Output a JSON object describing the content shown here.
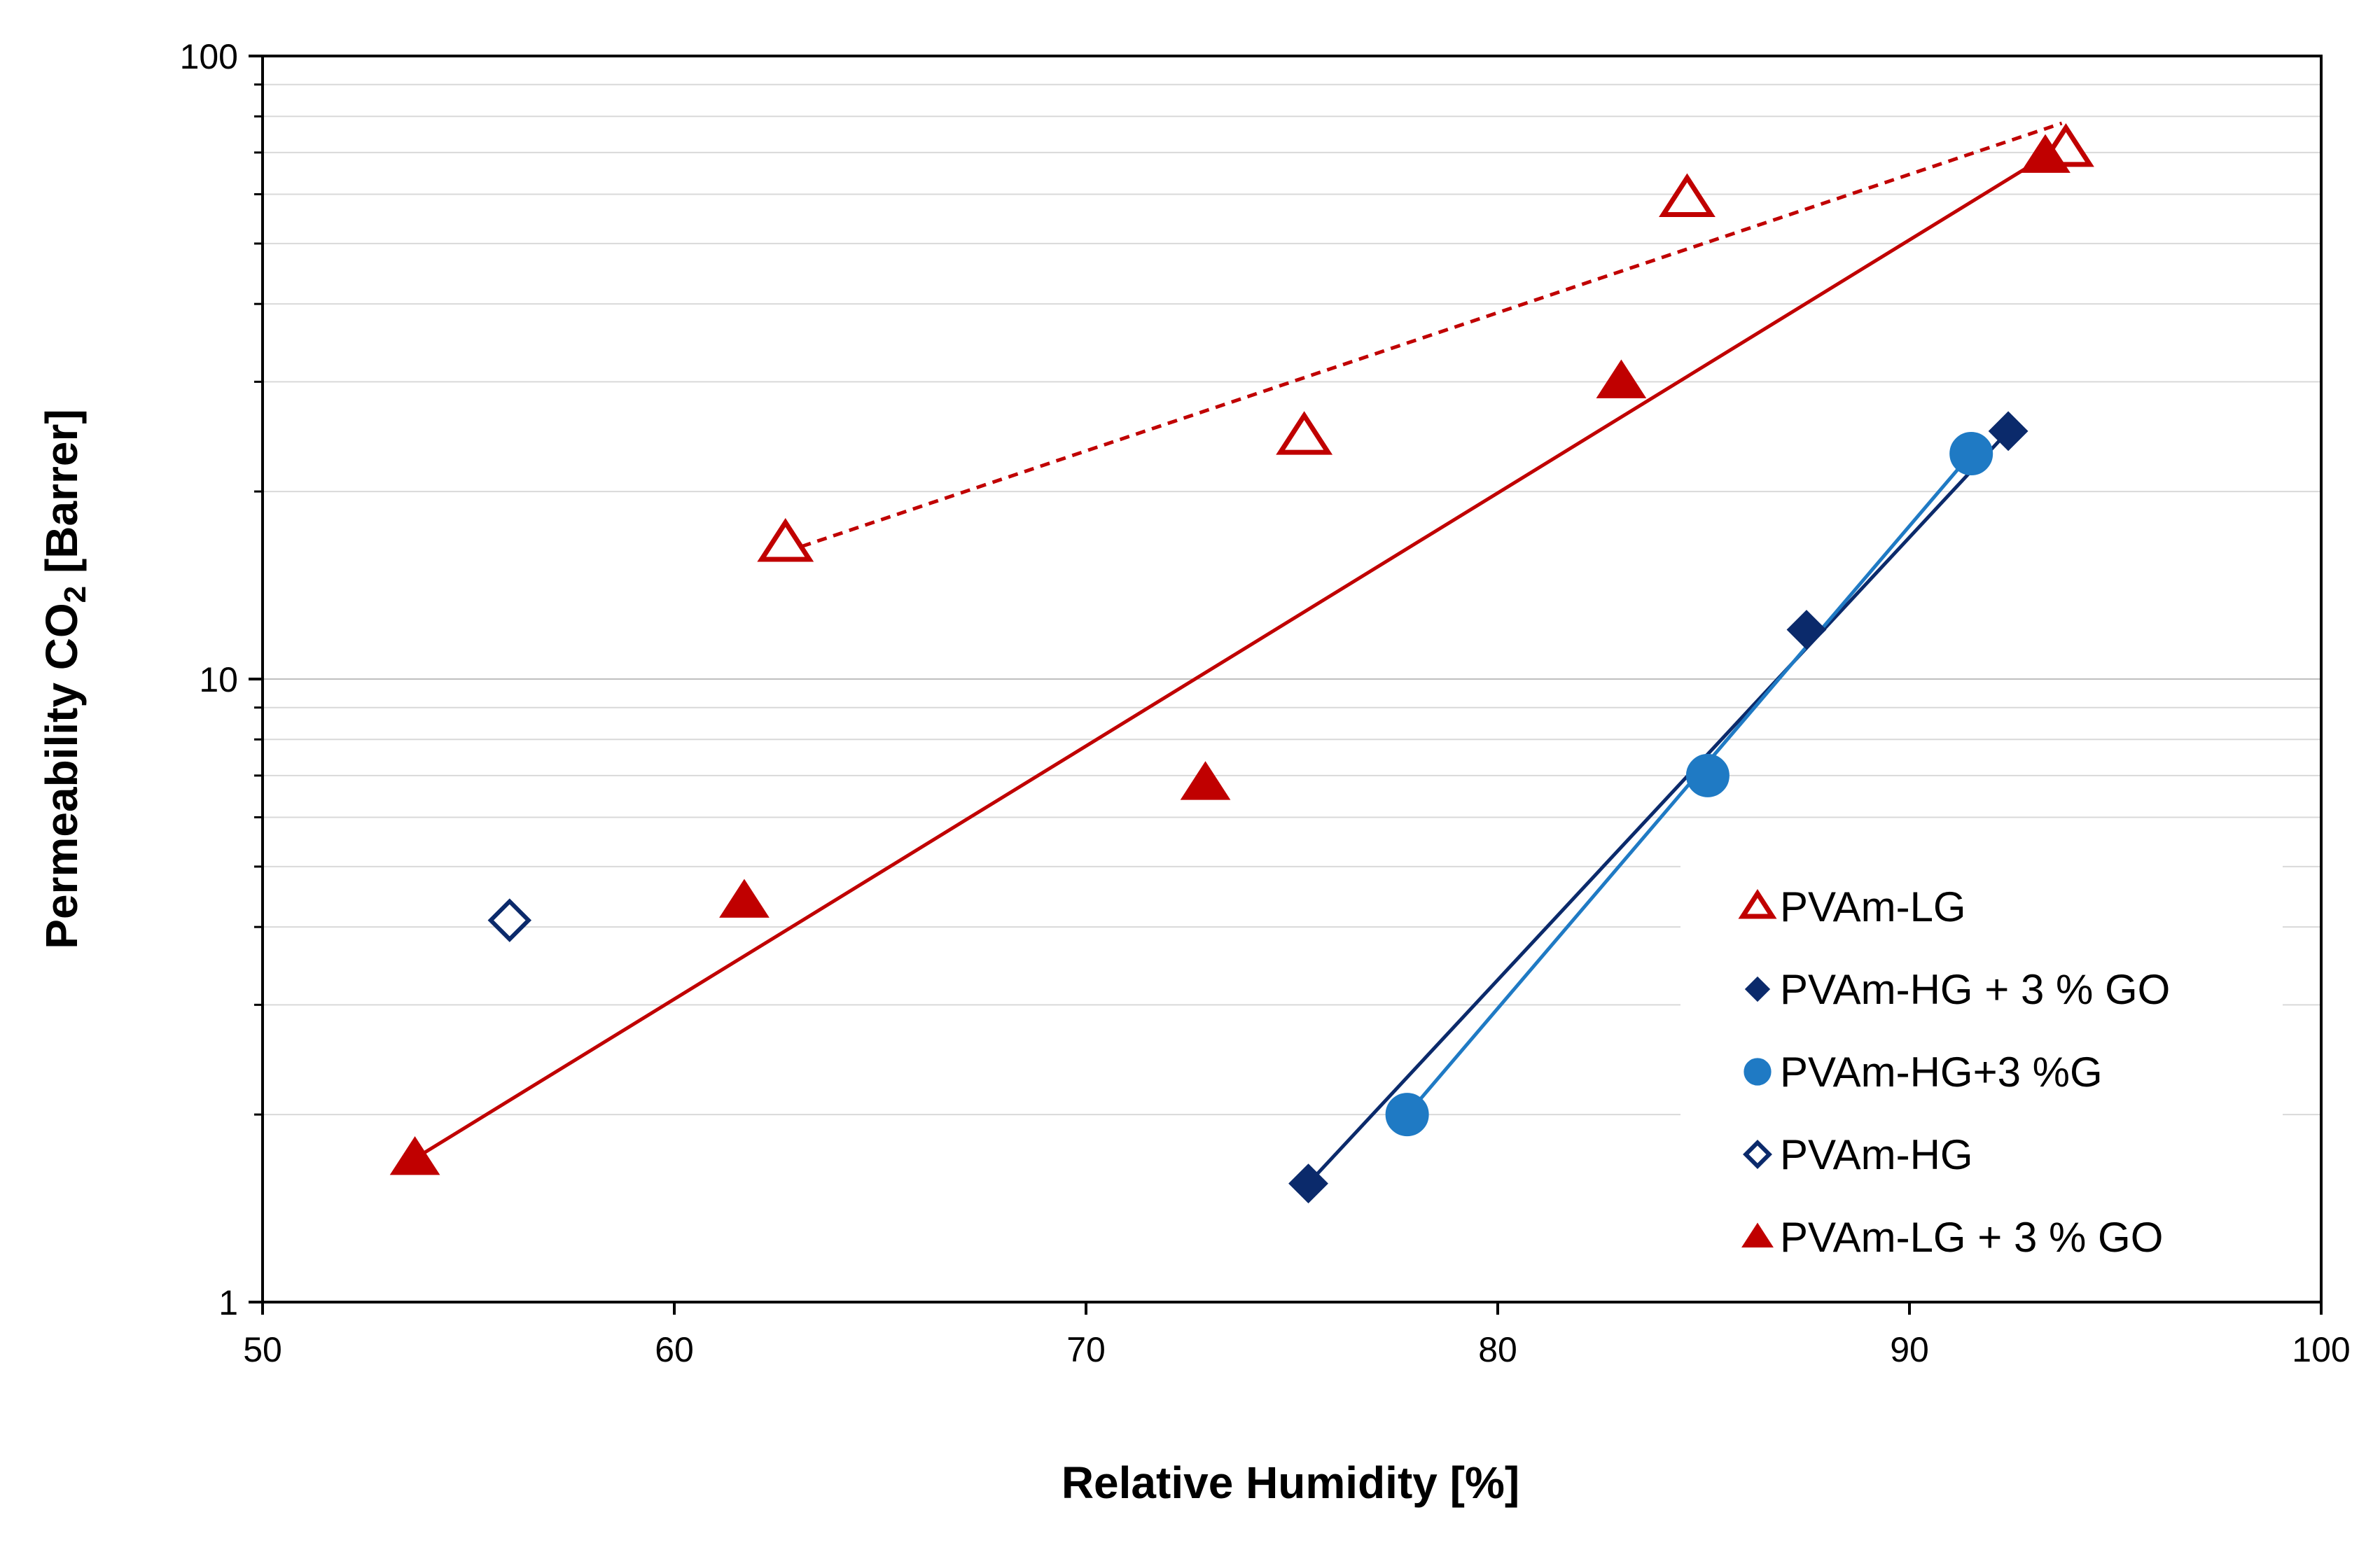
{
  "chart_data": {
    "type": "scatter",
    "title": "",
    "xlabel": "Relative Humidity [%]",
    "ylabel_main": "Permeability CO",
    "ylabel_sub": "2",
    "ylabel_end": " [Barrer]",
    "xlim": [
      50,
      100
    ],
    "ylim": [
      1,
      100
    ],
    "y_scale": "log",
    "x_ticks": [
      50,
      60,
      70,
      80,
      90,
      100
    ],
    "y_ticks": [
      1,
      10,
      100
    ],
    "grid": "horizontal",
    "legend_position": "bottom-right",
    "series": [
      {
        "name": "PVAm-LG",
        "marker": "triangle-open",
        "color": "#c00000",
        "points": [
          [
            62.7,
            16.5
          ],
          [
            75.3,
            24.5
          ],
          [
            84.6,
            59.0
          ],
          [
            93.8,
            71.0
          ]
        ],
        "trendline": {
          "style": "dashed",
          "from": [
            62.7,
            16.0
          ],
          "to": [
            93.7,
            78.0
          ]
        }
      },
      {
        "name": "PVAm-HG + 3 % GO",
        "marker": "diamond-filled",
        "color": "#0b2a6b",
        "points": [
          [
            75.4,
            1.55
          ],
          [
            87.5,
            12.0
          ],
          [
            92.4,
            25.0
          ]
        ],
        "trendline": {
          "style": "solid",
          "from": [
            75.4,
            1.55
          ],
          "to": [
            92.4,
            25.0
          ]
        }
      },
      {
        "name": "PVAm-HG+3 %G",
        "marker": "circle-filled",
        "color": "#1f7ac4",
        "points": [
          [
            77.8,
            2.0
          ],
          [
            85.1,
            7.0
          ],
          [
            91.5,
            23.0
          ]
        ],
        "trendline": {
          "style": "solid",
          "from": [
            77.8,
            2.0
          ],
          "to": [
            91.5,
            23.0
          ]
        }
      },
      {
        "name": "PVAm-HG",
        "marker": "diamond-open",
        "color": "#0b2a6b",
        "points": [
          [
            56.0,
            4.1
          ]
        ]
      },
      {
        "name": "PVAm-LG + 3 % GO",
        "marker": "triangle-filled",
        "color": "#c00000",
        "points": [
          [
            53.7,
            1.7
          ],
          [
            61.7,
            4.4
          ],
          [
            72.9,
            6.8
          ],
          [
            83.0,
            30.0
          ],
          [
            93.3,
            69.0
          ]
        ],
        "trendline": {
          "style": "solid",
          "from": [
            53.7,
            1.7
          ],
          "to": [
            93.3,
            69.0
          ]
        }
      }
    ]
  }
}
